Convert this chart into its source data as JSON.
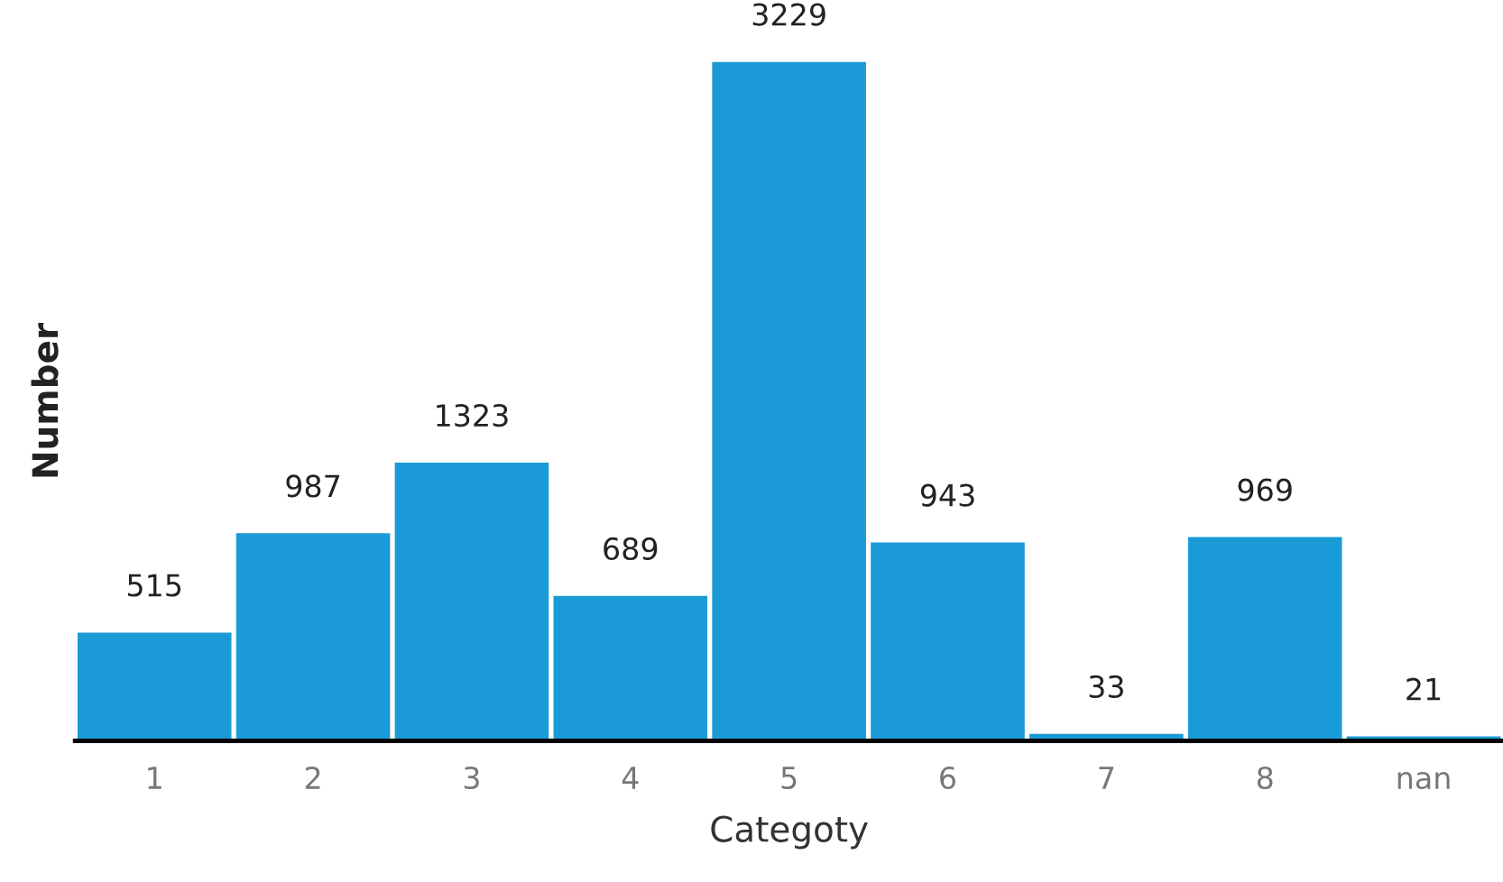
{
  "chart_data": {
    "type": "bar",
    "xlabel": "Categoty",
    "ylabel": "Number",
    "categories": [
      "1",
      "2",
      "3",
      "4",
      "5",
      "6",
      "7",
      "8",
      "nan"
    ],
    "values": [
      515,
      987,
      1323,
      689,
      3229,
      943,
      33,
      969,
      21
    ],
    "color": "#1a9ad6",
    "data_labels": true,
    "grid": false,
    "legend": false
  }
}
